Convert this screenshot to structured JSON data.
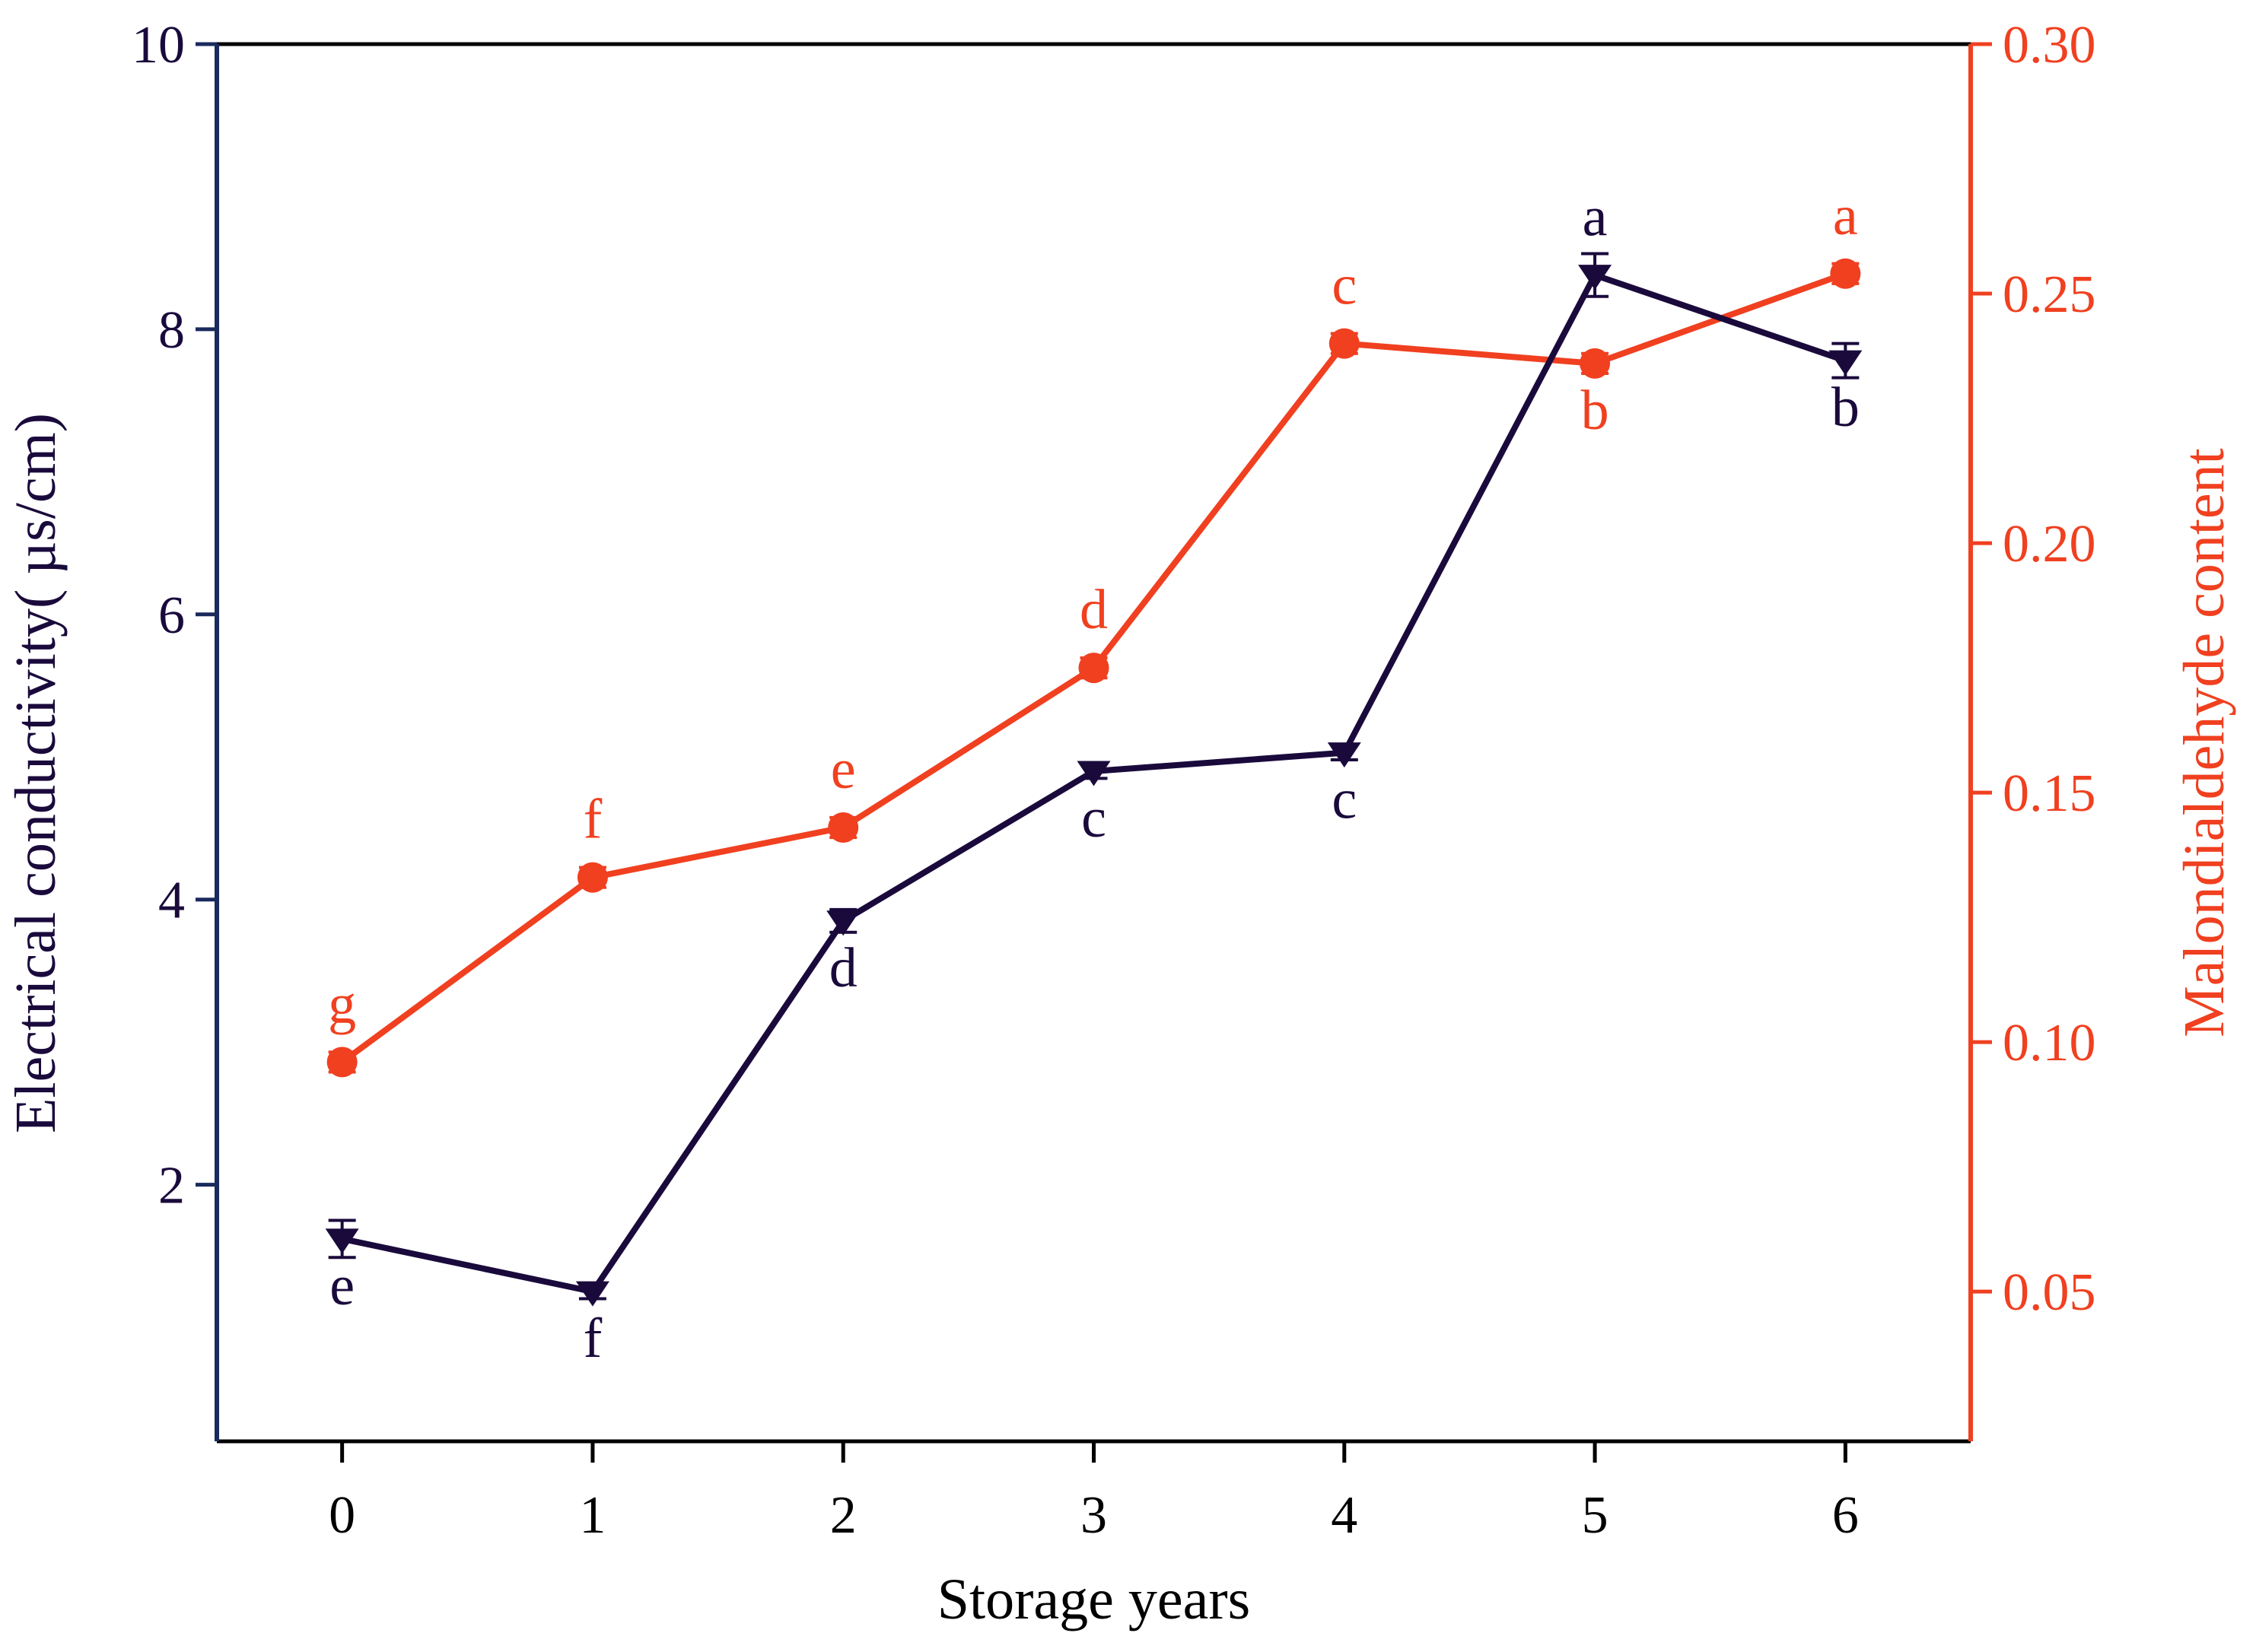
{
  "chart_data": {
    "type": "line",
    "title": "",
    "xlabel": "Storage years",
    "ylabel_left": "Electrical conductivity( µs/cm)",
    "ylabel_right": "Malondialdehyde content",
    "x": [
      0,
      1,
      2,
      3,
      4,
      5,
      6
    ],
    "x_ticks": [
      "0",
      "1",
      "2",
      "3",
      "4",
      "5",
      "6"
    ],
    "xlim": [
      -0.5,
      6.5
    ],
    "ylim_left": [
      0.2,
      10
    ],
    "ylim_right": [
      0.02,
      0.3
    ],
    "y_ticks_left": [
      "2",
      "4",
      "6",
      "8",
      "10"
    ],
    "y_ticks_left_values": [
      2,
      4,
      6,
      8,
      10
    ],
    "y_ticks_right": [
      "0.05",
      "0.10",
      "0.15",
      "0.20",
      "0.25",
      "0.30"
    ],
    "y_ticks_right_values": [
      0.05,
      0.1,
      0.15,
      0.2,
      0.25,
      0.3
    ],
    "grid": false,
    "series": [
      {
        "name": "Electrical conductivity",
        "axis": "left",
        "color": "#1a0a3c",
        "marker": "triangle-down",
        "values": [
          1.62,
          1.25,
          3.85,
          4.9,
          5.03,
          8.38,
          7.78
        ],
        "errors": [
          0.13,
          0.05,
          0.08,
          0.05,
          0.05,
          0.15,
          0.12
        ],
        "letters": [
          "e",
          "f",
          "d",
          "c",
          "c",
          "a",
          "b"
        ],
        "letter_positions": [
          "below",
          "below",
          "below",
          "below",
          "below",
          "above",
          "below"
        ]
      },
      {
        "name": "Malondialdehyde content",
        "axis": "right",
        "color": "#f04020",
        "marker": "circle",
        "values": [
          0.096,
          0.133,
          0.143,
          0.175,
          0.24,
          0.236,
          0.254
        ],
        "errors": [
          0.002,
          0.002,
          0.002,
          0.002,
          0.002,
          0.002,
          0.002
        ],
        "letters": [
          "g",
          "f",
          "e",
          "d",
          "c",
          "b",
          "a"
        ],
        "letter_positions": [
          "above",
          "above",
          "above",
          "above",
          "above",
          "below",
          "above"
        ]
      }
    ],
    "colors": {
      "left_axis": "#1a2a5c",
      "right_axis": "#f04020",
      "left_text": "#1a0a3c",
      "right_text": "#f04020",
      "frame": "#000000"
    }
  }
}
